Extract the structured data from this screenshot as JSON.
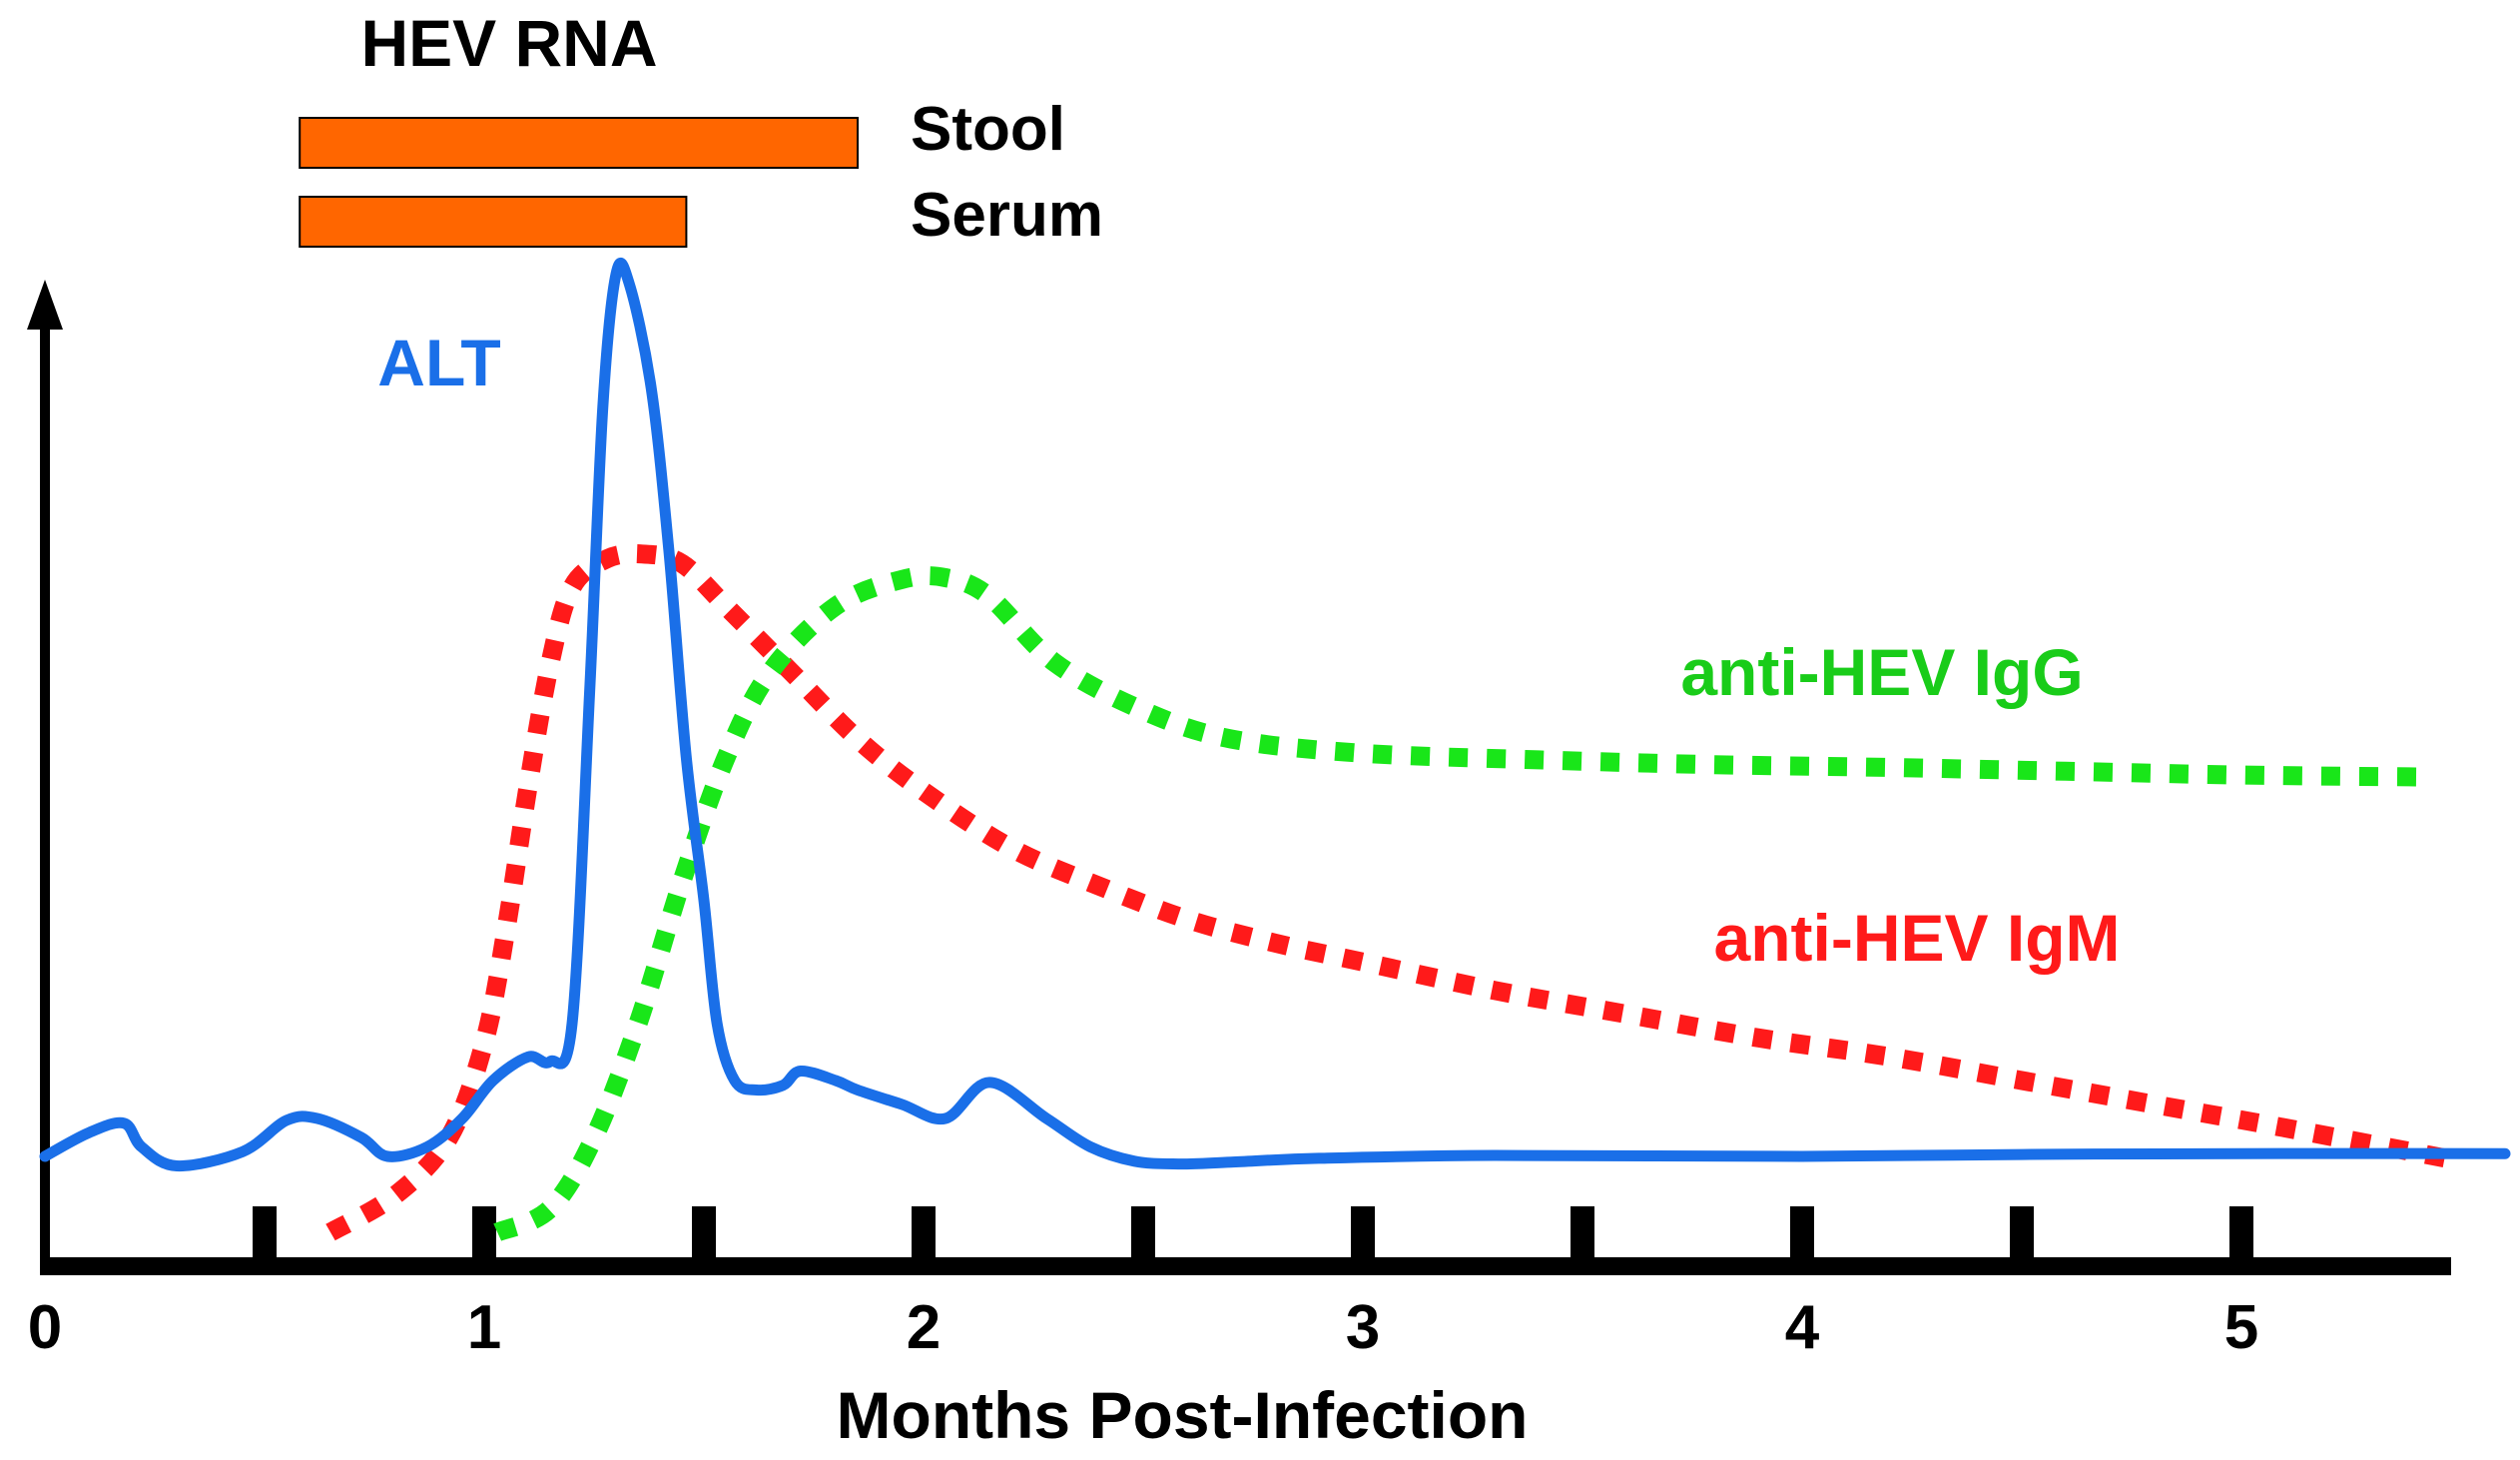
{
  "chart_data": {
    "type": "line",
    "title": "HEV RNA",
    "xlabel": "Months Post-Infection",
    "ylabel": "",
    "xlim": [
      0,
      5.6
    ],
    "ylim": [
      0,
      100
    ],
    "x_ticks": [
      "0",
      "1",
      "2",
      "3",
      "4",
      "5"
    ],
    "x_tick_values": [
      0,
      1,
      2,
      3,
      4,
      5
    ],
    "minor_tick_values": [
      0.5,
      1,
      1.5,
      2,
      2.5,
      3,
      3.5,
      4,
      4.5,
      5
    ],
    "hev_rna_bars": [
      {
        "label": "Stool",
        "start": 0.58,
        "end": 1.85,
        "color": "#ff6600"
      },
      {
        "label": "Serum",
        "start": 0.58,
        "end": 1.46,
        "color": "#ff6600"
      }
    ],
    "series": [
      {
        "name": "ALT",
        "style": "solid",
        "color": "#1a6fe8",
        "x": [
          0,
          0.1,
          0.18,
          0.22,
          0.3,
          0.45,
          0.55,
          0.62,
          0.72,
          0.78,
          0.87,
          0.95,
          1.02,
          1.1,
          1.15,
          1.2,
          1.24,
          1.27,
          1.3,
          1.33,
          1.38,
          1.42,
          1.46,
          1.5,
          1.53,
          1.57,
          1.62,
          1.68,
          1.72,
          1.8,
          1.85,
          1.95,
          2.05,
          2.15,
          2.28,
          2.38,
          2.48,
          2.58,
          2.7,
          2.9,
          3.3,
          4.0,
          4.5,
          5.0,
          5.6
        ],
        "y": [
          6,
          8.5,
          9.5,
          7,
          5,
          6.5,
          9.8,
          10,
          8,
          6,
          7,
          10,
          14,
          16.5,
          16,
          20,
          55,
          85,
          99,
          98,
          87,
          70,
          48,
          33,
          20,
          14,
          13,
          13.5,
          15,
          14,
          13,
          11.5,
          10,
          13.8,
          10,
          7,
          5.5,
          5.2,
          5.4,
          5.8,
          6.1,
          6,
          6.2,
          6.3,
          6.3
        ]
      },
      {
        "name": "anti-HEV IgM",
        "style": "dotted",
        "color": "#ff1a1a",
        "x": [
          0.65,
          0.8,
          0.92,
          1.0,
          1.05,
          1.1,
          1.15,
          1.2,
          1.28,
          1.36,
          1.45,
          1.55,
          1.7,
          1.85,
          2.0,
          2.2,
          2.4,
          2.6,
          2.8,
          3.0,
          3.3,
          3.6,
          3.9,
          4.2,
          4.5,
          4.8,
          5.1,
          5.5
        ],
        "y": [
          -2,
          2,
          8,
          18,
          30,
          45,
          58,
          66,
          69,
          69.5,
          68.5,
          64,
          57,
          50,
          44.5,
          38.5,
          34.5,
          31,
          28.5,
          26.5,
          23.5,
          21,
          18.5,
          16.5,
          14,
          11.5,
          9,
          5.5
        ]
      },
      {
        "name": "anti-HEV IgG",
        "style": "dotted",
        "color": "#19e619",
        "x": [
          1.03,
          1.15,
          1.25,
          1.35,
          1.45,
          1.55,
          1.65,
          1.8,
          1.95,
          2.05,
          2.15,
          2.3,
          2.5,
          2.7,
          3.0,
          3.4,
          3.8,
          4.2,
          4.6,
          5.0,
          5.4
        ],
        "y": [
          -2,
          0.5,
          8,
          20,
          35,
          48,
          57,
          64,
          66.8,
          67,
          65,
          58,
          53,
          50,
          48.5,
          47.8,
          47.3,
          47,
          46.6,
          46.2,
          46
        ]
      }
    ],
    "annotations": [
      {
        "text": "ALT",
        "color": "#1a6fe8"
      },
      {
        "text": "anti-HEV IgG",
        "color": "#19cc19"
      },
      {
        "text": "anti-HEV IgM",
        "color": "#ff1a1a"
      }
    ]
  }
}
